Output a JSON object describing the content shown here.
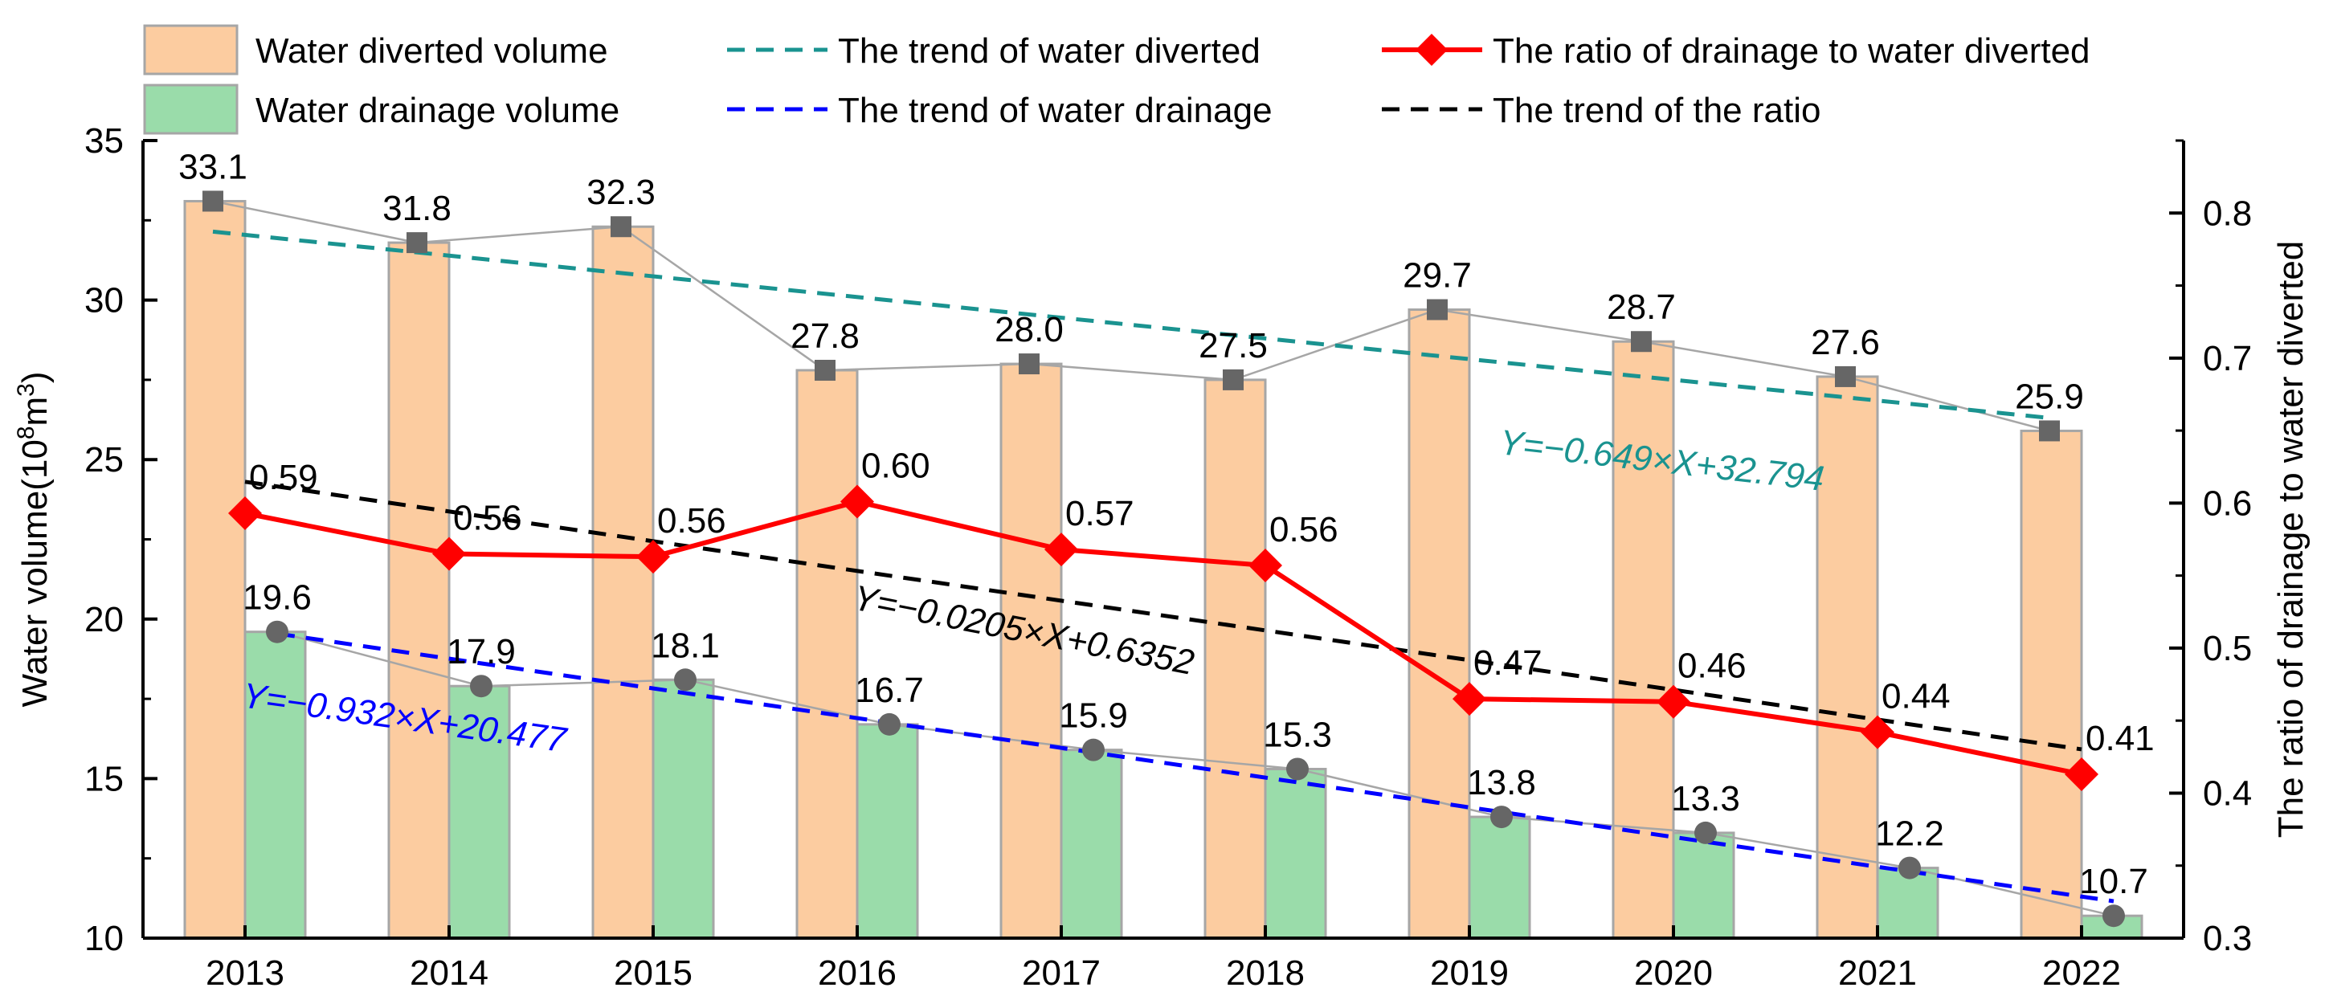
{
  "chart_data": {
    "type": "bar",
    "categories": [
      "2013",
      "2014",
      "2015",
      "2016",
      "2017",
      "2018",
      "2019",
      "2020",
      "2021",
      "2022"
    ],
    "series": [
      {
        "name": "Water diverted volume",
        "kind": "bar",
        "axis": "left",
        "values": [
          33.1,
          31.8,
          32.3,
          27.8,
          28.0,
          27.5,
          29.7,
          28.7,
          27.6,
          25.9
        ],
        "labels": [
          "33.1",
          "31.8",
          "32.3",
          "27.8",
          "28.0",
          "27.5",
          "29.7",
          "28.7",
          "27.6",
          "25.9"
        ],
        "color": "#FCCCA0",
        "edge": "#A6A6A6"
      },
      {
        "name": "Water drainage volume",
        "kind": "bar",
        "axis": "left",
        "values": [
          19.6,
          17.9,
          18.1,
          16.7,
          15.9,
          15.3,
          13.8,
          13.3,
          12.2,
          10.7
        ],
        "labels": [
          "19.6",
          "17.9",
          "18.1",
          "16.7",
          "15.9",
          "15.3",
          "13.8",
          "13.3",
          "12.2",
          "10.7"
        ],
        "color": "#9ADCAA",
        "edge": "#A6A6A6"
      },
      {
        "name": "The ratio of drainage to water diverted",
        "kind": "line",
        "axis": "right",
        "values": [
          0.593,
          0.565,
          0.563,
          0.601,
          0.568,
          0.557,
          0.465,
          0.463,
          0.442,
          0.413
        ],
        "labels": [
          "0.59",
          "0.56",
          "0.56",
          "0.60",
          "0.57",
          "0.56",
          "0.47",
          "0.46",
          "0.44",
          "0.41"
        ],
        "color": "#FF0000"
      }
    ],
    "trends": [
      {
        "name": "The trend of water diverted",
        "axis": "left",
        "slope": -0.649,
        "intercept": 32.794,
        "equation": "Y=−0.649×X+32.794",
        "color": "#1A9390"
      },
      {
        "name": "The trend of water drainage",
        "axis": "left",
        "slope": -0.932,
        "intercept": 20.477,
        "equation": "Y=−0.932×X+20.477",
        "color": "#0000FF"
      },
      {
        "name": "The trend of the ratio",
        "axis": "right",
        "slope": -0.0205,
        "intercept": 0.6352,
        "equation": "Y=−0.0205×X+0.6352",
        "color": "#000000"
      }
    ],
    "ylabel": "Water volume(10",
    "ylabel_sup": "8",
    "ylabel_unit": "m",
    "ylabel_sup2": "3",
    "ylabel_close": ")",
    "y2label": "The ratio of drainage to water diverted",
    "ylim": [
      10,
      35
    ],
    "yticks": [
      "10",
      "15",
      "20",
      "25",
      "30",
      "35"
    ],
    "y2lim": [
      0.3,
      0.85
    ],
    "y2ticks": [
      "0.3",
      "0.4",
      "0.5",
      "0.6",
      "0.7",
      "0.8"
    ],
    "grid": false,
    "legend_position": "top"
  },
  "legend": [
    {
      "label": "Water diverted volume",
      "swatch": "bar",
      "color": "#FCCCA0"
    },
    {
      "label": "Water drainage volume",
      "swatch": "bar",
      "color": "#9ADCAA"
    },
    {
      "label": "The trend of water diverted",
      "swatch": "dash",
      "color": "#1A9390"
    },
    {
      "label": "The trend of water drainage",
      "swatch": "dash",
      "color": "#0000FF"
    },
    {
      "label": "The ratio of drainage to water diverted",
      "swatch": "line-diamond",
      "color": "#FF0000"
    },
    {
      "label": "The trend of the ratio",
      "swatch": "dash",
      "color": "#000000"
    }
  ],
  "colors": {
    "axis": "#000000",
    "marker": "#666666",
    "connector": "#A6A6A6"
  }
}
